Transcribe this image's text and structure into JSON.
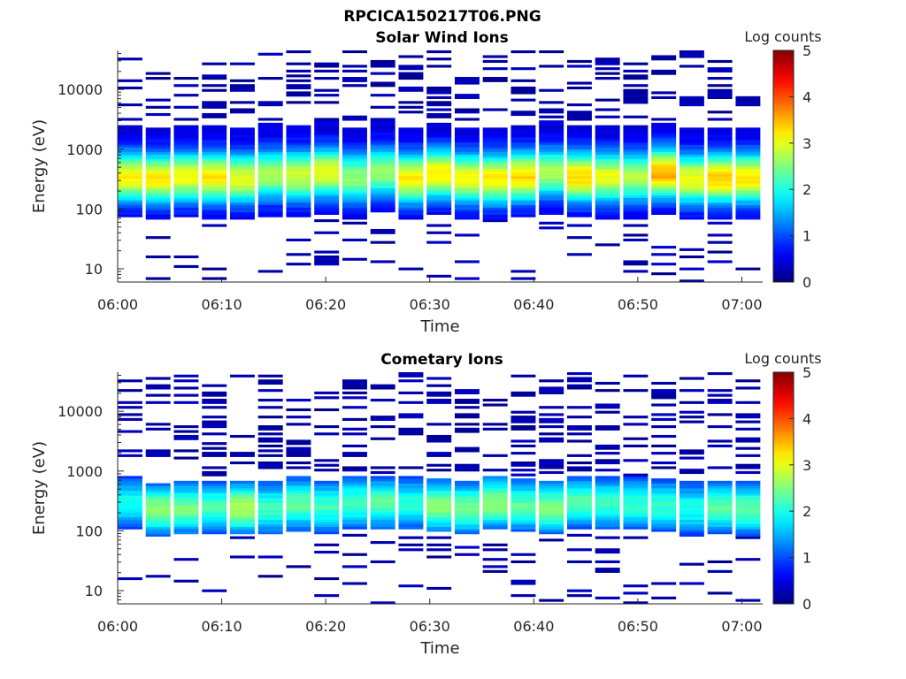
{
  "figure_title": "RPCICA150217T06.PNG",
  "chart_data": [
    {
      "type": "heatmap",
      "title": "Solar Wind Ions",
      "xlabel": "Time",
      "ylabel": "Energy (eV)",
      "x_ticks": [
        "06:00",
        "06:10",
        "06:20",
        "06:30",
        "06:40",
        "06:50",
        "07:00"
      ],
      "x_range": [
        "06:00",
        "07:02"
      ],
      "y_scale": "log",
      "y_range": [
        6,
        45000
      ],
      "y_ticks": [
        "10",
        "100",
        "1000",
        "10000"
      ],
      "colorbar": {
        "label": "Log counts",
        "min": 0,
        "max": 5,
        "ticks": [
          "0",
          "1",
          "2",
          "3",
          "4",
          "5"
        ],
        "colormap": "jet"
      },
      "n_scans": 23,
      "scan_minutes": 2.7,
      "summary": {
        "beam_energy_range_eV": [
          80,
          2500
        ],
        "peak_energy_eV": 350,
        "peak_log_counts_range": [
          2.0,
          3.2
        ],
        "sparse_noise_above_eV": 3000,
        "sparse_noise_below_eV": 80
      }
    },
    {
      "type": "heatmap",
      "title": "Cometary Ions",
      "xlabel": "Time",
      "ylabel": "Energy (eV)",
      "x_ticks": [
        "06:00",
        "06:10",
        "06:20",
        "06:30",
        "06:40",
        "06:50",
        "07:00"
      ],
      "x_range": [
        "06:00",
        "07:02"
      ],
      "y_scale": "log",
      "y_range": [
        6,
        45000
      ],
      "y_ticks": [
        "10",
        "100",
        "1000",
        "10000"
      ],
      "colorbar": {
        "label": "Log counts",
        "min": 0,
        "max": 5,
        "ticks": [
          "0",
          "1",
          "2",
          "3",
          "4",
          "5"
        ],
        "colormap": "jet"
      },
      "n_scans": 23,
      "scan_minutes": 2.7,
      "summary": {
        "beam_energy_range_eV": [
          100,
          700
        ],
        "peak_energy_eV": 250,
        "peak_log_counts_range": [
          1.6,
          2.4
        ],
        "sparse_noise_above_eV": 800,
        "sparse_noise_below_eV": 90
      }
    }
  ]
}
